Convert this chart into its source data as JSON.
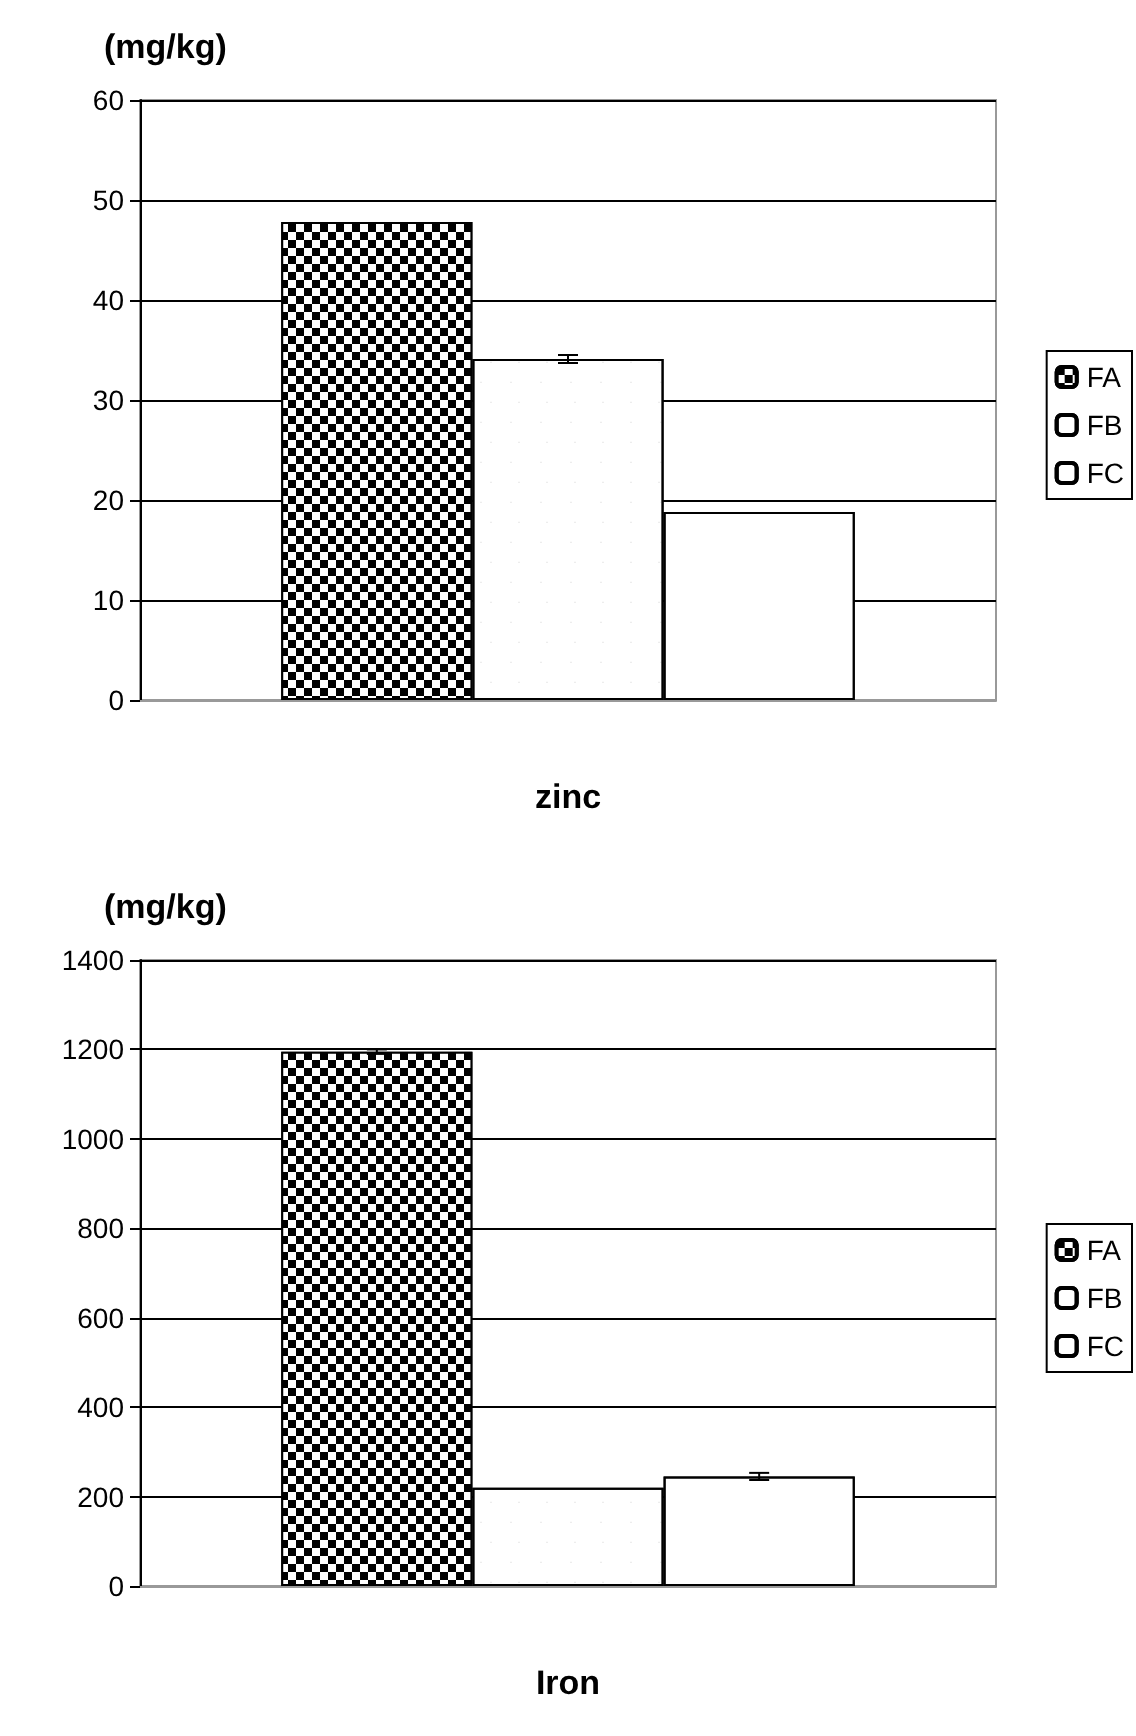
{
  "chart_data": [
    {
      "type": "bar",
      "ylabel": "(mg/kg)",
      "xlabel": "zinc",
      "categories": [
        null
      ],
      "ylim": [
        0,
        60
      ],
      "yticks": [
        0,
        10,
        20,
        30,
        40,
        50,
        60
      ],
      "grid": "y",
      "legend": "right",
      "series": [
        {
          "name": "FA",
          "color": "#000000",
          "values": [
            47.8
          ]
        },
        {
          "name": "FB",
          "color": "#ffffff",
          "values": [
            34.1
          ],
          "errors": [
            0.4
          ]
        },
        {
          "name": "FC",
          "color": "#ffffff",
          "values": [
            18.8
          ]
        }
      ]
    },
    {
      "type": "bar",
      "ylabel": "(mg/kg)",
      "xlabel": "Iron",
      "categories": [
        null
      ],
      "ylim": [
        0,
        1400
      ],
      "yticks": [
        0,
        200,
        400,
        600,
        800,
        1000,
        1200,
        1400
      ],
      "grid": "y",
      "legend": "right",
      "series": [
        {
          "name": "FA",
          "color": "#000000",
          "values": [
            1195
          ],
          "errors": [
            5
          ]
        },
        {
          "name": "FB",
          "color": "#ffffff",
          "values": [
            220
          ]
        },
        {
          "name": "FC",
          "color": "#ffffff",
          "values": [
            245
          ],
          "errors": [
            8
          ]
        }
      ]
    }
  ]
}
